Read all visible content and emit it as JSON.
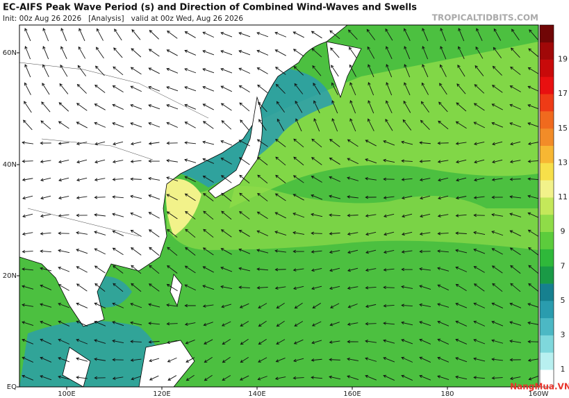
{
  "header": {
    "title": "EC-AIFS Peak Wave Period (s) and Direction of Combined Wind-Waves and Swells",
    "init": "Init: 00z Aug 26 2026   [Analysis]   valid at 00z Wed, Aug 26 2026",
    "source": "TROPICALTIDBITS.COM"
  },
  "map": {
    "lat_labels": [
      "60N",
      "40N",
      "20N",
      "EQ"
    ],
    "lon_labels": [
      "100E",
      "120E",
      "140E",
      "160E",
      "180",
      "160W"
    ]
  },
  "colorbar": {
    "labels": [
      "1",
      "3",
      "5",
      "7",
      "9",
      "11",
      "13",
      "15",
      "17",
      "19"
    ],
    "colors": [
      "#ffffff",
      "#b8f0f0",
      "#7fd8dc",
      "#4cb8c4",
      "#2a9cae",
      "#16808f",
      "#1a9a46",
      "#2fb83a",
      "#5ccc3c",
      "#8fdc48",
      "#c4e85a",
      "#f2f28a",
      "#f7e04a",
      "#f7b733",
      "#f28c28",
      "#f06a1e",
      "#ee3b16",
      "#e81010",
      "#c80a0a",
      "#a00808",
      "#700606"
    ]
  },
  "watermark": "NangMua.VN"
}
